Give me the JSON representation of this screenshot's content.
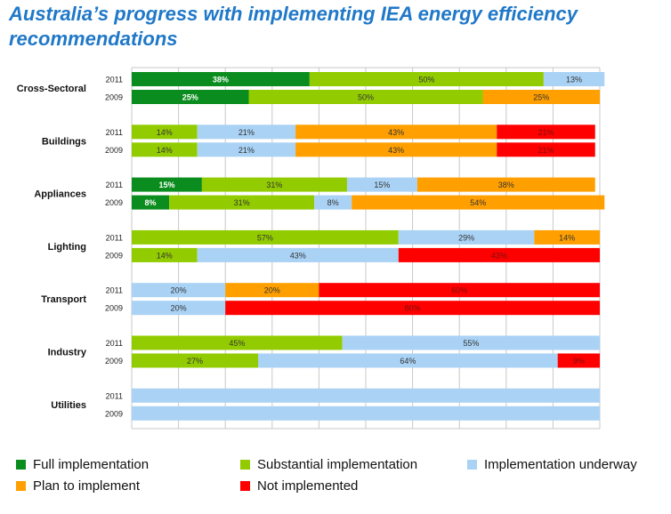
{
  "chart_data": {
    "type": "bar",
    "orientation": "horizontal",
    "stacked": true,
    "normalized_percent": true,
    "title": "Australia’s progress with implementing IEA energy efficiency recommendations",
    "grid": true,
    "legend_position": "bottom",
    "xlim": [
      0,
      100
    ],
    "categories": [
      "Cross-Sectoral",
      "Buildings",
      "Appliances",
      "Lighting",
      "Transport",
      "Industry",
      "Utilities"
    ],
    "years": [
      "2011",
      "2009"
    ],
    "series": [
      {
        "name": "Full implementation",
        "color": "#0b8c1e",
        "label_color": "#ffffff",
        "label_bold": true
      },
      {
        "name": "Substantial implementation",
        "color": "#92cc00",
        "label_color": "#333333",
        "label_bold": false
      },
      {
        "name": "Implementation underway",
        "color": "#a9d2f5",
        "label_color": "#333333",
        "label_bold": false
      },
      {
        "name": "Plan to implement",
        "color": "#ff9f00",
        "label_color": "#333333",
        "label_bold": false
      },
      {
        "name": "Not implemented",
        "color": "#ff0000",
        "label_color": "#7a1010",
        "label_bold": false
      }
    ],
    "rows": [
      {
        "category": "Cross-Sectoral",
        "year": "2011",
        "values": [
          38,
          50,
          13,
          0,
          0
        ],
        "labels": [
          "38%",
          "50%",
          "13%",
          "",
          ""
        ]
      },
      {
        "category": "Cross-Sectoral",
        "year": "2009",
        "values": [
          25,
          50,
          0,
          25,
          0
        ],
        "labels": [
          "25%",
          "50%",
          "",
          "25%",
          ""
        ]
      },
      {
        "category": "Buildings",
        "year": "2011",
        "values": [
          0,
          14,
          21,
          43,
          21
        ],
        "labels": [
          "",
          "14%",
          "21%",
          "43%",
          "21%"
        ]
      },
      {
        "category": "Buildings",
        "year": "2009",
        "values": [
          0,
          14,
          21,
          43,
          21
        ],
        "labels": [
          "",
          "14%",
          "21%",
          "43%",
          "21%"
        ]
      },
      {
        "category": "Appliances",
        "year": "2011",
        "values": [
          15,
          31,
          15,
          38,
          0
        ],
        "labels": [
          "15%",
          "31%",
          "15%",
          "38%",
          ""
        ]
      },
      {
        "category": "Appliances",
        "year": "2009",
        "values": [
          8,
          31,
          8,
          54,
          0
        ],
        "labels": [
          "8%",
          "31%",
          "8%",
          "54%",
          ""
        ]
      },
      {
        "category": "Lighting",
        "year": "2011",
        "values": [
          0,
          57,
          29,
          14,
          0
        ],
        "labels": [
          "",
          "57%",
          "29%",
          "14%",
          ""
        ]
      },
      {
        "category": "Lighting",
        "year": "2009",
        "values": [
          0,
          14,
          43,
          0,
          43
        ],
        "labels": [
          "",
          "14%",
          "43%",
          "",
          "43%"
        ]
      },
      {
        "category": "Transport",
        "year": "2011",
        "values": [
          0,
          0,
          20,
          20,
          60
        ],
        "labels": [
          "",
          "",
          "20%",
          "20%",
          "60%"
        ]
      },
      {
        "category": "Transport",
        "year": "2009",
        "values": [
          0,
          0,
          20,
          0,
          80
        ],
        "labels": [
          "",
          "",
          "20%",
          "",
          "80%"
        ]
      },
      {
        "category": "Industry",
        "year": "2011",
        "values": [
          0,
          45,
          55,
          0,
          0
        ],
        "labels": [
          "",
          "45%",
          "55%",
          "",
          ""
        ]
      },
      {
        "category": "Industry",
        "year": "2009",
        "values": [
          0,
          27,
          64,
          0,
          9
        ],
        "labels": [
          "",
          "27%",
          "64%",
          "",
          "9%"
        ]
      },
      {
        "category": "Utilities",
        "year": "2011",
        "values": [
          0,
          0,
          100,
          0,
          0
        ],
        "labels": [
          "",
          "",
          "",
          "",
          ""
        ]
      },
      {
        "category": "Utilities",
        "year": "2009",
        "values": [
          0,
          0,
          100,
          0,
          0
        ],
        "labels": [
          "",
          "",
          "",
          "",
          ""
        ]
      }
    ]
  }
}
